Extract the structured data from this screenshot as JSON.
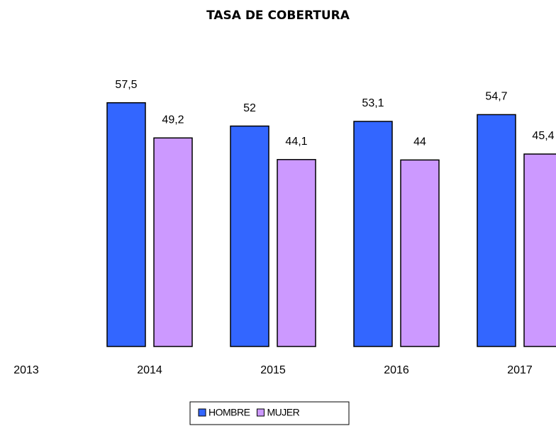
{
  "chart_data": {
    "type": "bar",
    "title": "TASA DE COBERTURA",
    "categories": [
      "2013",
      "2014",
      "2015",
      "2016",
      "2017"
    ],
    "series": [
      {
        "name": "HOMBRE",
        "color": "#3366ff",
        "values": [
          null,
          57.5,
          52,
          53.1,
          54.7
        ],
        "value_labels": [
          null,
          "57,5",
          "52",
          "53,1",
          "54,7"
        ]
      },
      {
        "name": "MUJER",
        "color": "#cc99ff",
        "values": [
          null,
          49.2,
          44.1,
          44,
          45.4
        ],
        "value_labels": [
          null,
          "49,2",
          "44,1",
          "44",
          "45,4"
        ]
      }
    ],
    "legend": "bottom"
  }
}
